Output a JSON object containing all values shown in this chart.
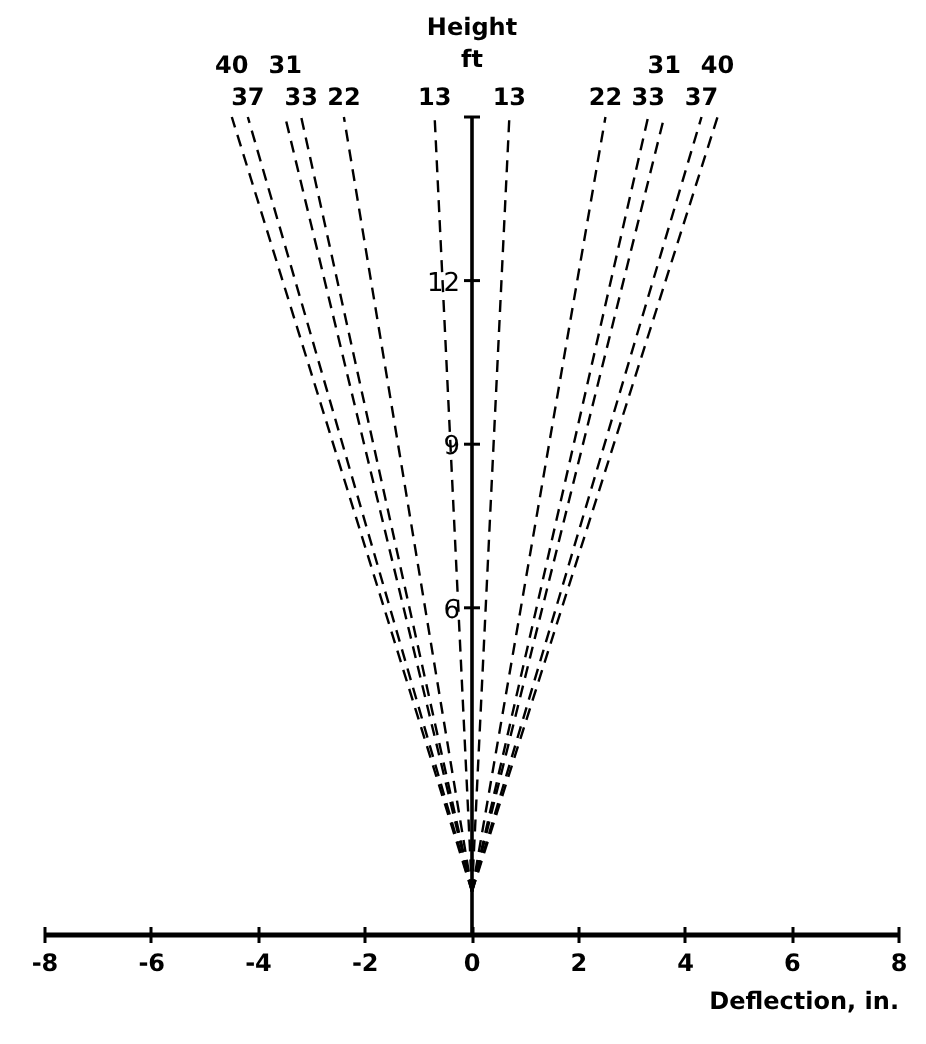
{
  "chart_data": {
    "type": "line",
    "xlabel": "Deflection, in.",
    "ylabel": "Height\nft",
    "xlim": [
      -8,
      8
    ],
    "xticks": [
      -8,
      -6,
      -4,
      -2,
      0,
      2,
      4,
      6,
      8
    ],
    "ylim": [
      0,
      15
    ],
    "yticks": [
      6,
      9,
      12,
      {
        "value": 15,
        "label": null
      }
    ],
    "line_style": "dashed",
    "series": [
      {
        "name": "40",
        "color": "#000000",
        "x": [
          0,
          -4.5
        ],
        "values": [
          0.8,
          15
        ]
      },
      {
        "name": "37",
        "color": "#000000",
        "x": [
          0,
          -4.2
        ],
        "values": [
          0.8,
          15
        ]
      },
      {
        "name": "31",
        "color": "#000000",
        "x": [
          0,
          -3.5
        ],
        "values": [
          0.8,
          15
        ]
      },
      {
        "name": "33",
        "color": "#000000",
        "x": [
          0,
          -3.2
        ],
        "values": [
          0.8,
          15
        ]
      },
      {
        "name": "22",
        "color": "#000000",
        "x": [
          0,
          -2.4
        ],
        "values": [
          0.8,
          15
        ]
      },
      {
        "name": "13",
        "color": "#000000",
        "x": [
          0,
          -0.7
        ],
        "values": [
          0.8,
          15
        ]
      },
      {
        "name": "13",
        "color": "#000000",
        "x": [
          0,
          0.7
        ],
        "values": [
          0.8,
          15
        ]
      },
      {
        "name": "22",
        "color": "#000000",
        "x": [
          0,
          2.5
        ],
        "values": [
          0.8,
          15
        ]
      },
      {
        "name": "33",
        "color": "#000000",
        "x": [
          0,
          3.3
        ],
        "values": [
          0.8,
          15
        ]
      },
      {
        "name": "31",
        "color": "#000000",
        "x": [
          0,
          3.6
        ],
        "values": [
          0.8,
          15
        ]
      },
      {
        "name": "37",
        "color": "#000000",
        "x": [
          0,
          4.3
        ],
        "values": [
          0.8,
          15
        ]
      },
      {
        "name": "40",
        "color": "#000000",
        "x": [
          0,
          4.6
        ],
        "values": [
          0.8,
          15
        ]
      }
    ]
  }
}
